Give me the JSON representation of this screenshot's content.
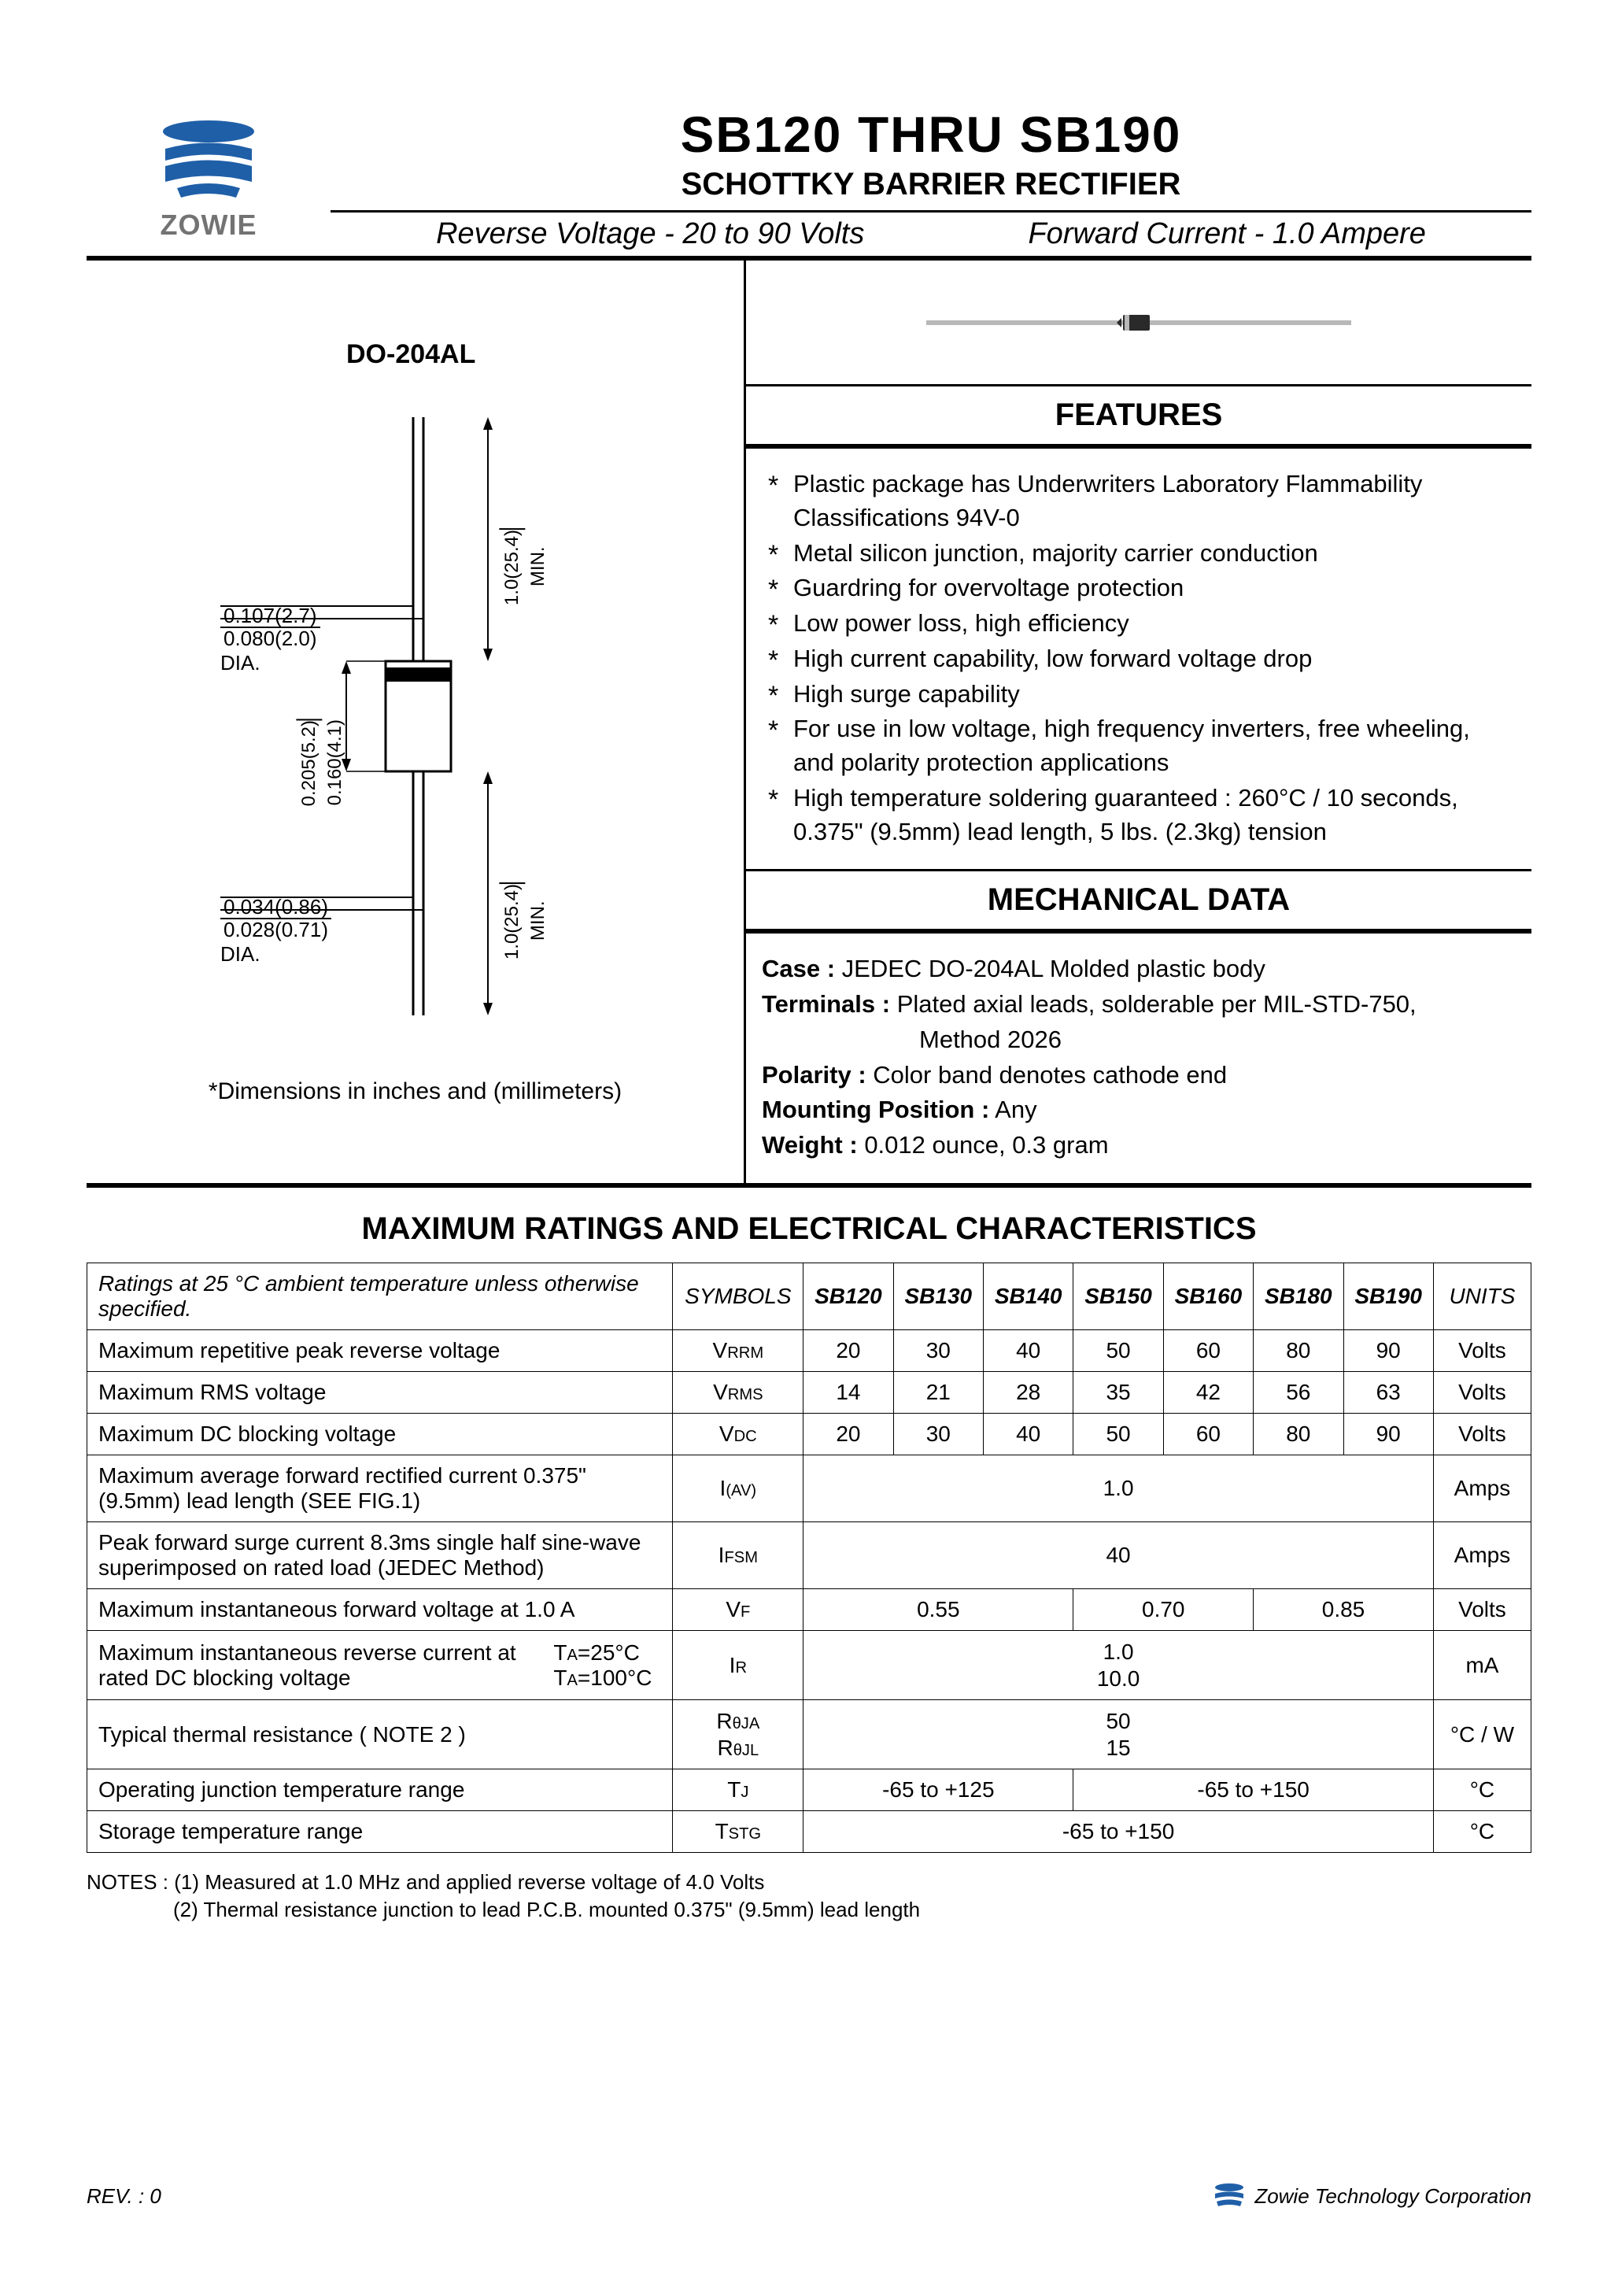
{
  "logo": {
    "brand": "ZOWIE",
    "color_primary": "#1f5fa8",
    "color_gray": "#737373"
  },
  "header": {
    "title": "SB120  THRU  SB190",
    "subtitle": "SCHOTTKY BARRIER RECTIFIER",
    "spec_left": "Reverse Voltage - 20 to 90 Volts",
    "spec_right": "Forward Current - 1.0 Ampere"
  },
  "package": {
    "name": "DO-204AL",
    "note": "*Dimensions in inches and (millimeters)",
    "dims": {
      "lead_dia_top": "0.107(2.7)",
      "lead_dia_bot": "0.080(2.0)",
      "lead_dia_label": "DIA.",
      "body_w_top": "0.205(5.2)",
      "body_w_bot": "0.160(4.1)",
      "lead_len": "1.0(25.4)",
      "lead_len_label": "MIN.",
      "lead2_dia_top": "0.034(0.86)",
      "lead2_dia_bot": "0.028(0.71)",
      "lead2_dia_label": "DIA."
    }
  },
  "features": {
    "title": "FEATURES",
    "items": [
      "Plastic package has Underwriters Laboratory Flammability Classifications 94V-0",
      "Metal silicon junction, majority carrier conduction",
      "Guardring for overvoltage protection",
      "Low power loss, high efficiency",
      "High current capability, low forward voltage drop",
      "High surge capability",
      "For use in low voltage, high frequency inverters, free wheeling, and polarity protection applications",
      "High temperature soldering guaranteed : 260°C / 10 seconds, 0.375\" (9.5mm) lead length, 5 lbs. (2.3kg) tension"
    ]
  },
  "mechanical": {
    "title": "MECHANICAL DATA",
    "case_label": "Case :",
    "case_value": "JEDEC DO-204AL Molded plastic body",
    "terminals_label": "Terminals :",
    "terminals_value": "Plated axial leads, solderable per MIL-STD-750,",
    "terminals_value2": "Method 2026",
    "polarity_label": "Polarity :",
    "polarity_value": "Color band denotes cathode end",
    "mounting_label": "Mounting Position :",
    "mounting_value": "Any",
    "weight_label": "Weight :",
    "weight_value": "0.012 ounce, 0.3 gram"
  },
  "ratings": {
    "title": "MAXIMUM RATINGS AND ELECTRICAL CHARACTERISTICS",
    "header_note": "Ratings at 25 °C ambient temperature unless otherwise specified.",
    "col_symbols": "SYMBOLS",
    "col_units": "UNITS",
    "parts": [
      "SB120",
      "SB130",
      "SB140",
      "SB150",
      "SB160",
      "SB180",
      "SB190"
    ],
    "rows": [
      {
        "desc": "Maximum repetitive peak reverse voltage",
        "sym_html": "V<span class='sym-sub'>RRM</span>",
        "vals": [
          "20",
          "30",
          "40",
          "50",
          "60",
          "80",
          "90"
        ],
        "unit": "Volts"
      },
      {
        "desc": "Maximum RMS voltage",
        "sym_html": "V<span class='sym-sub'>RMS</span>",
        "vals": [
          "14",
          "21",
          "28",
          "35",
          "42",
          "56",
          "63"
        ],
        "unit": "Volts"
      },
      {
        "desc": "Maximum DC blocking voltage",
        "sym_html": "V<span class='sym-sub'>DC</span>",
        "vals": [
          "20",
          "30",
          "40",
          "50",
          "60",
          "80",
          "90"
        ],
        "unit": "Volts"
      },
      {
        "desc": "Maximum average forward rectified current 0.375\" (9.5mm) lead length (SEE FIG.1)",
        "sym_html": "I<span class='sym-sub'>(AV)</span>",
        "span": 7,
        "val": "1.0",
        "unit": "Amps"
      },
      {
        "desc": "Peak forward surge current 8.3ms single half sine-wave superimposed on rated load (JEDEC Method)",
        "sym_html": "I<span class='sym-sub'>FSM</span>",
        "span": 7,
        "val": "40",
        "unit": "Amps"
      },
      {
        "desc": "Maximum instantaneous forward voltage at 1.0 A",
        "sym_html": "V<span class='sym-sub'>F</span>",
        "groups": [
          {
            "span": 3,
            "val": "0.55"
          },
          {
            "span": 2,
            "val": "0.70"
          },
          {
            "span": 2,
            "val": "0.85"
          }
        ],
        "unit": "Volts"
      },
      {
        "desc_left": "Maximum instantaneous reverse current at rated DC blocking voltage",
        "desc_right1": "T",
        "desc_right1b": "A",
        "desc_right1c": "=25°C",
        "desc_right2": "T",
        "desc_right2b": "A",
        "desc_right2c": "=100°C",
        "sym_html": "I<span class='sym-sub'>R</span>",
        "span": 7,
        "stack": [
          "1.0",
          "10.0"
        ],
        "unit": "mA"
      },
      {
        "desc": "Typical thermal resistance ( NOTE 2 )",
        "sym_stack": [
          "R<span class='sym-sub'>θJA</span>",
          "R<span class='sym-sub'>θJL</span>"
        ],
        "span": 7,
        "stack": [
          "50",
          "15"
        ],
        "unit": "°C / W"
      },
      {
        "desc": "Operating junction temperature range",
        "sym_html": "T<span class='sym-sub'>J</span>",
        "groups": [
          {
            "span": 3,
            "val": "-65 to +125"
          },
          {
            "span": 4,
            "val": "-65 to +150"
          }
        ],
        "unit": "°C"
      },
      {
        "desc": "Storage temperature range",
        "sym_html": "T<span class='sym-sub'>STG</span>",
        "span": 7,
        "val": "-65 to +150",
        "unit": "°C"
      }
    ]
  },
  "notes": {
    "line1": "NOTES : (1) Measured at 1.0 MHz and applied reverse voltage of 4.0 Volts",
    "line2": "(2) Thermal resistance junction to lead P.C.B. mounted 0.375\" (9.5mm) lead length"
  },
  "footer": {
    "rev": "REV. : 0",
    "corp": "Zowie Technology Corporation"
  }
}
